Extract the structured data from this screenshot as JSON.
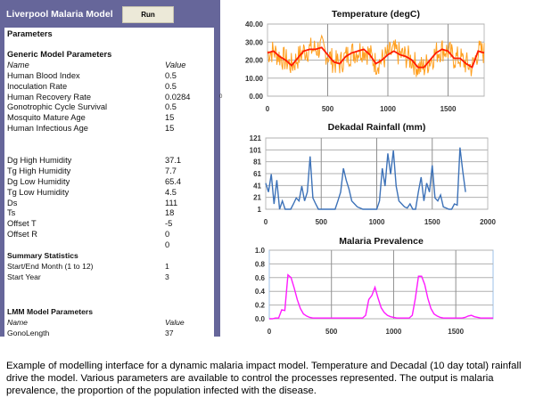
{
  "panel": {
    "title": "Liverpool Malaria Model",
    "run_label": "Run",
    "parameters_label": "Parameters",
    "stray_value": "0",
    "generic": {
      "heading": "Generic Model Parameters",
      "name_header": "Name",
      "value_header": "Value",
      "rows": [
        [
          "Human Blood Index",
          "0.5"
        ],
        [
          "Inoculation Rate",
          "0.5"
        ],
        [
          "Human Recovery Rate",
          "0.0284"
        ],
        [
          "Gonotrophic Cycle Survival",
          "0.5"
        ],
        [
          "Mosquito Mature Age",
          "15"
        ],
        [
          "Human Infectious Age",
          "15"
        ]
      ]
    },
    "humidity": {
      "rows": [
        [
          "Dg High Humidity",
          "37.1"
        ],
        [
          "Tg High Humidity",
          "7.7"
        ],
        [
          "Dg Low Humidity",
          "65.4"
        ],
        [
          "Tg Low Humidity",
          "4.5"
        ],
        [
          "Ds",
          "111"
        ],
        [
          "Ts",
          "18"
        ],
        [
          "Offset T",
          "-5"
        ],
        [
          "Offset R",
          "0"
        ],
        [
          "",
          "0"
        ]
      ]
    },
    "summary": {
      "heading": "Summary Statistics",
      "rows": [
        [
          "Start/End Month (1 to 12)",
          "1"
        ],
        [
          "Start Year",
          "3"
        ]
      ]
    },
    "lmm": {
      "heading": "LMM Model Parameters",
      "name_header": "Name",
      "value_header": "Value",
      "rows": [
        [
          "GonoLength",
          "37"
        ]
      ]
    }
  },
  "chart_data": [
    {
      "type": "line",
      "title": "Temperature (degC)",
      "xlim": [
        0,
        1800
      ],
      "ylim": [
        0,
        40
      ],
      "xticks": [
        "0",
        "500",
        "1000",
        "1500"
      ],
      "yticks": [
        "0.00",
        "10.00",
        "20.00",
        "30.00",
        "40.00"
      ],
      "grid": true,
      "colors": {
        "raw": "#ffa020",
        "smoothed": "#ff1a00"
      },
      "x": [
        0,
        50,
        100,
        150,
        200,
        250,
        300,
        350,
        400,
        450,
        500,
        550,
        600,
        650,
        700,
        750,
        800,
        850,
        900,
        950,
        1000,
        1050,
        1100,
        1150,
        1200,
        1250,
        1300,
        1350,
        1400,
        1450,
        1500,
        1550,
        1600,
        1650,
        1700,
        1750,
        1800
      ],
      "series": [
        {
          "name": "smoothed",
          "values": [
            24,
            25,
            22,
            20,
            17,
            21,
            25,
            26,
            26,
            27,
            23,
            19,
            18,
            22,
            24,
            25,
            26,
            23,
            18,
            20,
            23,
            25,
            23,
            22,
            20,
            16,
            16,
            20,
            24,
            26,
            25,
            21,
            21,
            18,
            16,
            25,
            24
          ]
        }
      ]
    },
    {
      "type": "line",
      "title": "Dekadal Rainfall (mm)",
      "xlim": [
        0,
        2000
      ],
      "ylim": [
        1,
        121
      ],
      "xticks": [
        "0",
        "500",
        "1000",
        "1500",
        "2000"
      ],
      "yticks": [
        "1",
        "21",
        "41",
        "61",
        "81",
        "101",
        "121"
      ],
      "grid": true,
      "colors": {
        "line": "#3d72b8"
      },
      "x": [
        0,
        25,
        50,
        75,
        100,
        125,
        150,
        175,
        200,
        225,
        250,
        275,
        300,
        325,
        350,
        375,
        400,
        425,
        450,
        475,
        500,
        525,
        550,
        575,
        600,
        625,
        650,
        675,
        700,
        725,
        750,
        775,
        800,
        825,
        850,
        875,
        900,
        925,
        950,
        975,
        1000,
        1025,
        1050,
        1075,
        1100,
        1125,
        1150,
        1175,
        1200,
        1225,
        1250,
        1275,
        1300,
        1325,
        1350,
        1375,
        1400,
        1425,
        1450,
        1475,
        1500,
        1525,
        1550,
        1575,
        1600,
        1625,
        1650,
        1675,
        1700,
        1725,
        1750,
        1775,
        1800
      ],
      "series": [
        {
          "name": "rainfall",
          "values": [
            45,
            30,
            60,
            10,
            50,
            1,
            15,
            1,
            1,
            1,
            10,
            20,
            15,
            40,
            15,
            30,
            90,
            20,
            10,
            1,
            1,
            1,
            1,
            1,
            1,
            1,
            15,
            30,
            70,
            50,
            35,
            15,
            10,
            5,
            3,
            1,
            1,
            1,
            1,
            1,
            1,
            15,
            70,
            40,
            95,
            60,
            100,
            40,
            15,
            10,
            5,
            3,
            10,
            1,
            1,
            30,
            55,
            15,
            45,
            30,
            75,
            20,
            15,
            25,
            5,
            3,
            1,
            1,
            10,
            8,
            105,
            65,
            30
          ]
        }
      ]
    },
    {
      "type": "line",
      "title": "Malaria Prevalence",
      "xlim": [
        0,
        1800
      ],
      "ylim": [
        0,
        1
      ],
      "xticks": [
        "0",
        "500",
        "1000",
        "1500"
      ],
      "yticks": [
        "0.0",
        "0.2",
        "0.4",
        "0.6",
        "0.8",
        "1.0"
      ],
      "grid": true,
      "colors": {
        "line": "#ff1aff"
      },
      "x": [
        0,
        25,
        50,
        75,
        100,
        125,
        150,
        175,
        200,
        225,
        250,
        275,
        300,
        325,
        350,
        375,
        400,
        425,
        450,
        475,
        500,
        525,
        550,
        575,
        600,
        625,
        650,
        675,
        700,
        725,
        750,
        775,
        800,
        825,
        850,
        875,
        900,
        925,
        950,
        975,
        1000,
        1025,
        1050,
        1075,
        1100,
        1125,
        1150,
        1175,
        1200,
        1225,
        1250,
        1275,
        1300,
        1325,
        1350,
        1375,
        1400,
        1425,
        1450,
        1475,
        1500,
        1525,
        1550,
        1575,
        1600,
        1625,
        1650,
        1675,
        1700,
        1725,
        1750,
        1775,
        1800
      ],
      "series": [
        {
          "name": "prevalence",
          "values": [
            0,
            0,
            0.01,
            0.01,
            0.13,
            0.12,
            0.64,
            0.6,
            0.45,
            0.28,
            0.15,
            0.07,
            0.04,
            0.02,
            0.01,
            0.01,
            0.01,
            0.01,
            0.01,
            0.01,
            0.01,
            0.01,
            0.01,
            0.01,
            0.01,
            0.01,
            0.01,
            0.01,
            0.01,
            0.01,
            0.01,
            0.05,
            0.28,
            0.34,
            0.46,
            0.3,
            0.16,
            0.09,
            0.05,
            0.03,
            0.02,
            0.01,
            0.01,
            0.01,
            0.01,
            0.01,
            0.05,
            0.3,
            0.62,
            0.62,
            0.5,
            0.3,
            0.15,
            0.07,
            0.04,
            0.02,
            0.01,
            0.01,
            0.01,
            0.01,
            0.01,
            0.01,
            0.01,
            0.02,
            0.04,
            0.05,
            0.03,
            0.02,
            0.01,
            0.01,
            0.01,
            0.01,
            0.01
          ]
        }
      ]
    }
  ],
  "caption": "Example of modelling interface for a dynamic malaria impact model. Temperature and Decadal (10 day total) rainfall drive the model. Various parameters are available to control the processes represented. The output is malaria prevalence, the proportion of the population infected with the disease."
}
